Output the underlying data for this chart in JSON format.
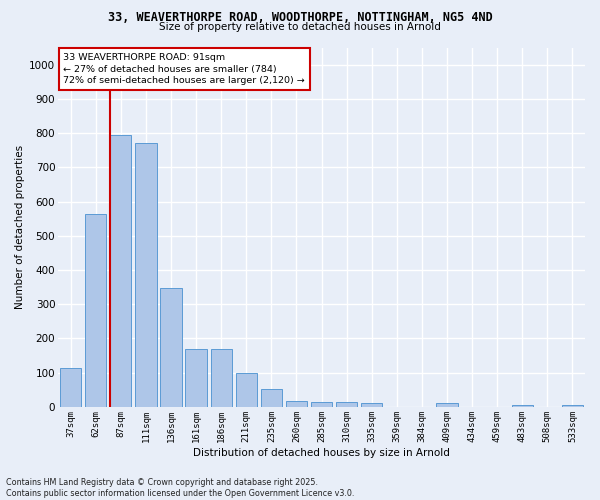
{
  "title_line1": "33, WEAVERTHORPE ROAD, WOODTHORPE, NOTTINGHAM, NG5 4ND",
  "title_line2": "Size of property relative to detached houses in Arnold",
  "xlabel": "Distribution of detached houses by size in Arnold",
  "ylabel": "Number of detached properties",
  "categories": [
    "37sqm",
    "62sqm",
    "87sqm",
    "111sqm",
    "136sqm",
    "161sqm",
    "186sqm",
    "211sqm",
    "235sqm",
    "260sqm",
    "285sqm",
    "310sqm",
    "335sqm",
    "359sqm",
    "384sqm",
    "409sqm",
    "434sqm",
    "459sqm",
    "483sqm",
    "508sqm",
    "533sqm"
  ],
  "values": [
    113,
    565,
    793,
    770,
    348,
    168,
    168,
    98,
    53,
    18,
    13,
    13,
    10,
    0,
    0,
    10,
    0,
    0,
    5,
    0,
    5
  ],
  "bar_color": "#aec6e8",
  "bar_edge_color": "#5b9bd5",
  "vline_x_index": 2,
  "annotation_text": "33 WEAVERTHORPE ROAD: 91sqm\n← 27% of detached houses are smaller (784)\n72% of semi-detached houses are larger (2,120) →",
  "annotation_box_color": "#ffffff",
  "annotation_box_edge_color": "#cc0000",
  "vline_color": "#cc0000",
  "footer_line1": "Contains HM Land Registry data © Crown copyright and database right 2025.",
  "footer_line2": "Contains public sector information licensed under the Open Government Licence v3.0.",
  "bg_color": "#e8eef8",
  "grid_color": "#ffffff",
  "ylim": [
    0,
    1050
  ],
  "yticks": [
    0,
    100,
    200,
    300,
    400,
    500,
    600,
    700,
    800,
    900,
    1000
  ]
}
